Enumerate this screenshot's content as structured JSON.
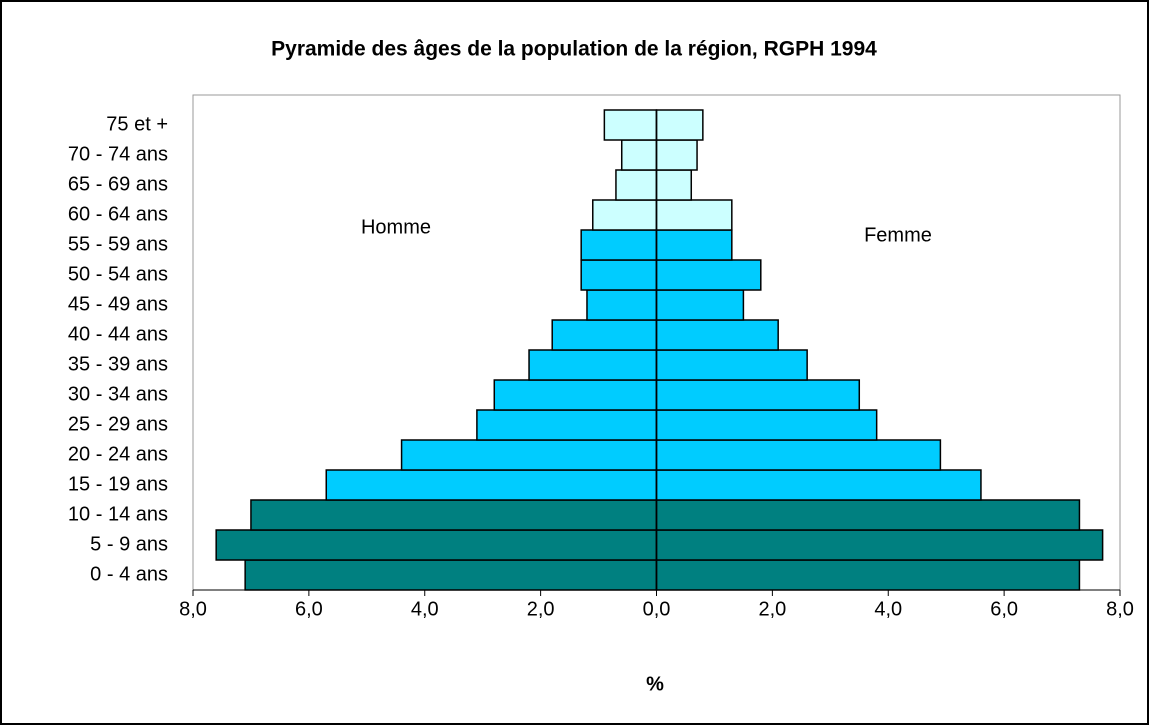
{
  "chart_data": {
    "type": "pyramid",
    "title": "Pyramide des âges de la population de la région, RGPH 1994",
    "categories": [
      "0 - 4 ans",
      "5 - 9 ans",
      "10 - 14 ans",
      "15 - 19 ans",
      "20 - 24 ans",
      "25 - 29 ans",
      "30 - 34 ans",
      "35 - 39 ans",
      "40 - 44 ans",
      "45 - 49 ans",
      "50 - 54 ans",
      "55 - 59 ans",
      "60 - 64 ans",
      "65 - 69 ans",
      "70 - 74 ans",
      "75  et  +"
    ],
    "series": [
      {
        "name": "Homme",
        "values": [
          -7.1,
          -7.6,
          -7.0,
          -5.7,
          -4.4,
          -3.1,
          -2.8,
          -2.2,
          -1.8,
          -1.2,
          -1.3,
          -1.3,
          -1.1,
          -0.7,
          -0.6,
          -0.9
        ]
      },
      {
        "name": "Femme",
        "values": [
          7.3,
          7.7,
          7.3,
          5.6,
          4.9,
          3.8,
          3.5,
          2.6,
          2.1,
          1.5,
          1.8,
          1.3,
          1.3,
          0.6,
          0.7,
          0.8
        ]
      }
    ],
    "colors": [
      "#008080",
      "#008080",
      "#008080",
      "#00ccff",
      "#00ccff",
      "#00ccff",
      "#00ccff",
      "#00ccff",
      "#00ccff",
      "#00ccff",
      "#00ccff",
      "#00ccff",
      "#ccffff",
      "#ccffff",
      "#ccffff",
      "#ccffff"
    ],
    "xlabel": "%",
    "xlim": [
      -8,
      8
    ],
    "xticks": [
      {
        "value": -8,
        "label": "8,0",
        "color": "#ff0000"
      },
      {
        "value": -6,
        "label": "6,0",
        "color": "#ff0000"
      },
      {
        "value": -4,
        "label": "4,0",
        "color": "#ff0000"
      },
      {
        "value": -2,
        "label": "2,0",
        "color": "#ff0000"
      },
      {
        "value": 0,
        "label": "0,0",
        "color": "#000000"
      },
      {
        "value": 2,
        "label": "2,0",
        "color": "#000000"
      },
      {
        "value": 4,
        "label": "4,0",
        "color": "#000000"
      },
      {
        "value": 6,
        "label": "6,0",
        "color": "#000000"
      },
      {
        "value": 8,
        "label": "8,0",
        "color": "#000000"
      }
    ]
  }
}
